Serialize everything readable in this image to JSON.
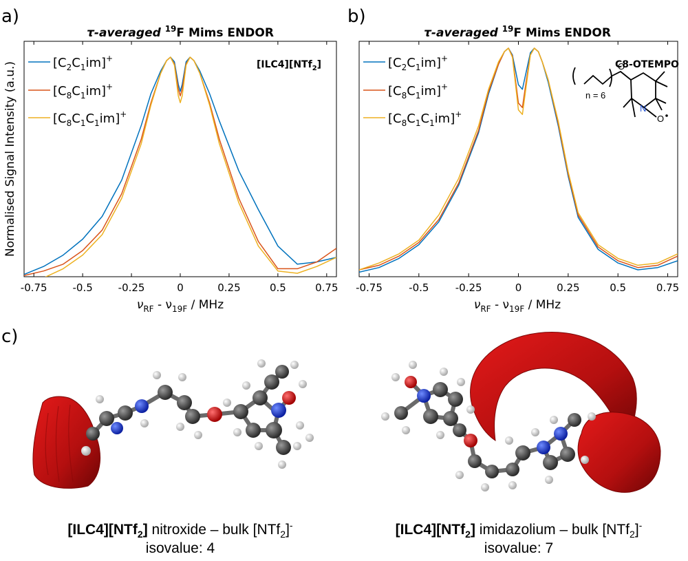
{
  "panel_labels": [
    "a)",
    "b)",
    "c)"
  ],
  "chart_data": [
    {
      "type": "line",
      "title": {
        "pre": "τ-averaged ",
        "sup": "19",
        "post": "F Mims ENDOR"
      },
      "xlabel": {
        "nu": "ν",
        "sub1": "RF",
        "mid": " - ν",
        "sub2": "19F",
        "post": " / MHz"
      },
      "ylabel": "Normalised Signal Intensity (a.u.)",
      "xlim": [
        -0.8,
        0.8
      ],
      "ylim": [
        0,
        1
      ],
      "xticks": [
        "-0.75",
        "-0.5",
        "-0.25",
        "0",
        "0.25",
        "0.5",
        "0.75"
      ],
      "xtick_values": [
        -0.75,
        -0.5,
        -0.25,
        0,
        0.25,
        0.5,
        0.75
      ],
      "annotation": {
        "pre": "[ILC4][NTf",
        "sub": "2",
        "post": "]"
      },
      "legend_position": "top-left",
      "series": [
        {
          "name": {
            "a": "[C",
            "s1": "2",
            "b": "C",
            "s2": "1",
            "c": "im]",
            "sup": "+"
          },
          "color": "#0072bd",
          "x": [
            -0.8,
            -0.7,
            -0.6,
            -0.5,
            -0.4,
            -0.3,
            -0.2,
            -0.15,
            -0.1,
            -0.07,
            -0.05,
            -0.03,
            -0.01,
            0,
            0.01,
            0.03,
            0.05,
            0.07,
            0.1,
            0.15,
            0.2,
            0.3,
            0.4,
            0.5,
            0.6,
            0.7,
            0.8
          ],
          "y": [
            0.045,
            0.08,
            0.13,
            0.2,
            0.3,
            0.46,
            0.7,
            0.84,
            0.94,
            0.985,
            1,
            0.98,
            0.88,
            0.85,
            0.88,
            0.98,
            1,
            0.985,
            0.94,
            0.84,
            0.72,
            0.5,
            0.33,
            0.17,
            0.09,
            0.1,
            0.12
          ]
        },
        {
          "name": {
            "a": "[C",
            "s1": "8",
            "b": "C",
            "s2": "1",
            "c": "im]",
            "sup": "+"
          },
          "color": "#d95319",
          "x": [
            -0.8,
            -0.7,
            -0.6,
            -0.5,
            -0.4,
            -0.3,
            -0.2,
            -0.15,
            -0.1,
            -0.07,
            -0.05,
            -0.03,
            -0.01,
            0,
            0.01,
            0.03,
            0.05,
            0.07,
            0.1,
            0.15,
            0.2,
            0.3,
            0.4,
            0.5,
            0.6,
            0.7,
            0.8
          ],
          "y": [
            0.04,
            0.06,
            0.09,
            0.15,
            0.24,
            0.4,
            0.64,
            0.8,
            0.93,
            0.985,
            1,
            0.97,
            0.86,
            0.83,
            0.86,
            0.97,
            1,
            0.985,
            0.93,
            0.8,
            0.64,
            0.38,
            0.19,
            0.07,
            0.07,
            0.1,
            0.16
          ]
        },
        {
          "name": {
            "a": "[C",
            "s1": "8",
            "b": "C",
            "s2": "1",
            "c": "C",
            "s3": "1",
            "d": "im]",
            "sup": "+"
          },
          "color": "#edb120",
          "x": [
            -0.8,
            -0.7,
            -0.6,
            -0.5,
            -0.4,
            -0.3,
            -0.2,
            -0.15,
            -0.1,
            -0.07,
            -0.05,
            -0.03,
            -0.01,
            0,
            0.01,
            0.03,
            0.05,
            0.07,
            0.1,
            0.15,
            0.2,
            0.3,
            0.4,
            0.5,
            0.6,
            0.7,
            0.8
          ],
          "y": [
            0,
            0.03,
            0.07,
            0.13,
            0.22,
            0.38,
            0.62,
            0.79,
            0.93,
            0.985,
            1,
            0.965,
            0.83,
            0.8,
            0.83,
            0.965,
            1,
            0.985,
            0.93,
            0.79,
            0.62,
            0.36,
            0.17,
            0.06,
            0.05,
            0.08,
            0.12
          ]
        }
      ]
    },
    {
      "type": "line",
      "title": {
        "pre": "τ-averaged ",
        "sup": "19",
        "post": "F Mims ENDOR"
      },
      "xlabel": {
        "nu": "ν",
        "sub1": "RF",
        "mid": " - ν",
        "sub2": "19F",
        "post": " / MHz"
      },
      "xlim": [
        -0.8,
        0.8
      ],
      "ylim": [
        0,
        1
      ],
      "xticks": [
        "-0.75",
        "-0.5",
        "-0.25",
        "0",
        "0.25",
        "0.5",
        "0.75"
      ],
      "xtick_values": [
        -0.75,
        -0.5,
        -0.25,
        0,
        0.25,
        0.5,
        0.75
      ],
      "annotation": {
        "text": "C8-OTEMPO"
      },
      "legend_position": "top-left",
      "series": [
        {
          "name": {
            "a": "[C",
            "s1": "2",
            "b": "C",
            "s2": "1",
            "c": "im]",
            "sup": "+"
          },
          "color": "#0072bd",
          "x": [
            -0.8,
            -0.7,
            -0.6,
            -0.5,
            -0.4,
            -0.3,
            -0.2,
            -0.15,
            -0.1,
            -0.07,
            -0.05,
            -0.03,
            0,
            0.02,
            0.04,
            0.06,
            0.08,
            0.1,
            0.12,
            0.15,
            0.2,
            0.25,
            0.3,
            0.4,
            0.5,
            0.6,
            0.7,
            0.8
          ],
          "y": [
            0.02,
            0.04,
            0.08,
            0.14,
            0.24,
            0.4,
            0.63,
            0.8,
            0.93,
            0.985,
            1,
            0.97,
            0.84,
            0.82,
            0.9,
            0.98,
            1,
            0.985,
            0.94,
            0.85,
            0.66,
            0.44,
            0.26,
            0.12,
            0.06,
            0.03,
            0.04,
            0.07
          ]
        },
        {
          "name": {
            "a": "[C",
            "s1": "8",
            "b": "C",
            "s2": "1",
            "c": "im]",
            "sup": "+"
          },
          "color": "#d95319",
          "x": [
            -0.8,
            -0.7,
            -0.6,
            -0.5,
            -0.4,
            -0.3,
            -0.2,
            -0.15,
            -0.1,
            -0.07,
            -0.05,
            -0.03,
            0,
            0.02,
            0.04,
            0.06,
            0.08,
            0.1,
            0.12,
            0.15,
            0.2,
            0.25,
            0.3,
            0.4,
            0.5,
            0.6,
            0.7,
            0.8
          ],
          "y": [
            0.03,
            0.05,
            0.09,
            0.15,
            0.25,
            0.41,
            0.64,
            0.81,
            0.93,
            0.985,
            1,
            0.965,
            0.76,
            0.74,
            0.86,
            0.97,
            1,
            0.985,
            0.94,
            0.86,
            0.67,
            0.45,
            0.27,
            0.13,
            0.07,
            0.04,
            0.05,
            0.09
          ]
        },
        {
          "name": {
            "a": "[C",
            "s1": "8",
            "b": "C",
            "s2": "1",
            "c": "C",
            "s3": "1",
            "d": "im]",
            "sup": "+"
          },
          "color": "#edb120",
          "x": [
            -0.8,
            -0.7,
            -0.6,
            -0.5,
            -0.4,
            -0.3,
            -0.2,
            -0.15,
            -0.1,
            -0.07,
            -0.05,
            -0.03,
            0,
            0.02,
            0.04,
            0.06,
            0.08,
            0.1,
            0.12,
            0.15,
            0.2,
            0.25,
            0.3,
            0.4,
            0.5,
            0.6,
            0.7,
            0.8
          ],
          "y": [
            0.03,
            0.06,
            0.1,
            0.16,
            0.27,
            0.43,
            0.66,
            0.82,
            0.94,
            0.985,
            1,
            0.96,
            0.73,
            0.71,
            0.84,
            0.97,
            1,
            0.985,
            0.94,
            0.86,
            0.68,
            0.46,
            0.28,
            0.14,
            0.08,
            0.05,
            0.06,
            0.1
          ]
        }
      ]
    }
  ],
  "structure": {
    "n_label": "n = 6",
    "atom_O": "O",
    "atom_N": "N",
    "atom_Orad": "O"
  },
  "captions": [
    {
      "bold_pre": "[ILC4][NTf",
      "bold_sub": "2",
      "bold_post": "]",
      "text": " nitroxide – bulk [NTf",
      "sub": "2",
      "post": "]",
      "sup": "-",
      "line2": "isovalue: 4"
    },
    {
      "bold_pre": "[ILC4][NTf",
      "bold_sub": "2",
      "bold_post": "]",
      "text": " imidazolium – bulk [NTf",
      "sub": "2",
      "post": "]",
      "sup": "-",
      "line2": "isovalue: 7"
    }
  ]
}
